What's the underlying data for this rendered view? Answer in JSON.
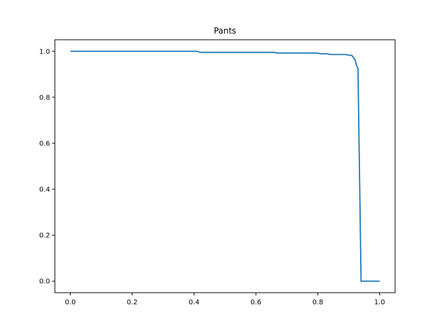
{
  "chart_data": {
    "type": "line",
    "title": "Pants",
    "xlabel": "",
    "ylabel": "",
    "xlim": [
      -0.05,
      1.05
    ],
    "ylim": [
      -0.05,
      1.05
    ],
    "xticks": [
      0.0,
      0.2,
      0.4,
      0.6,
      0.8,
      1.0
    ],
    "xtick_labels": [
      "0.0",
      "0.2",
      "0.4",
      "0.6",
      "0.8",
      "1.0"
    ],
    "yticks": [
      0.0,
      0.2,
      0.4,
      0.6,
      0.8,
      1.0
    ],
    "ytick_labels": [
      "0.0",
      "0.2",
      "0.4",
      "0.6",
      "0.8",
      "1.0"
    ],
    "grid": false,
    "series": [
      {
        "color": "#1f77b4",
        "x": [
          0.0,
          0.41,
          0.42,
          0.66,
          0.67,
          0.8,
          0.81,
          0.83,
          0.84,
          0.89,
          0.9,
          0.91,
          0.92,
          0.925,
          0.93,
          0.94,
          0.95,
          1.0
        ],
        "y": [
          1.0,
          1.0,
          0.995,
          0.995,
          0.992,
          0.992,
          0.989,
          0.989,
          0.986,
          0.986,
          0.983,
          0.982,
          0.965,
          0.94,
          0.925,
          0.0,
          0.0,
          0.0
        ]
      }
    ]
  }
}
